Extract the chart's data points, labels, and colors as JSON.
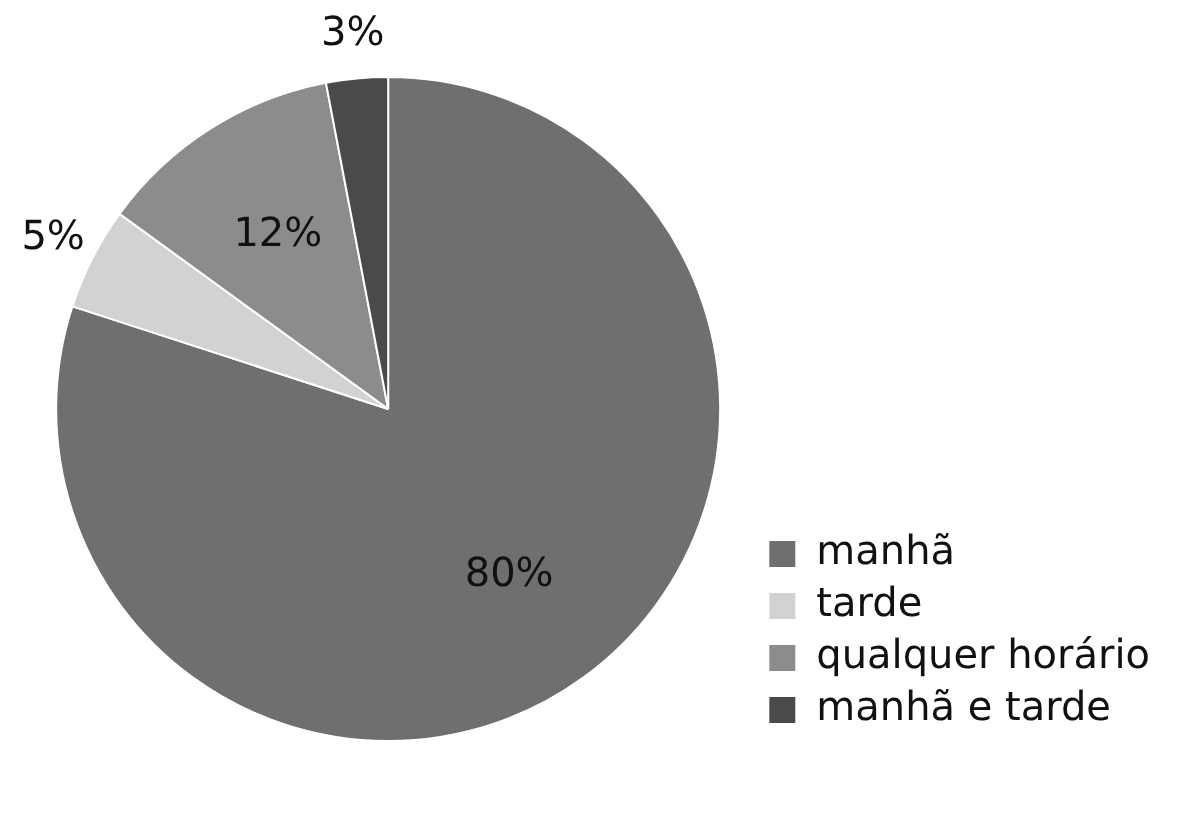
{
  "chart_data": {
    "type": "pie",
    "categories": [
      "manhã",
      "tarde",
      "qualquer horário",
      "manhã e tarde"
    ],
    "values": [
      80,
      5,
      12,
      3
    ],
    "colors": [
      "#6f6f6f",
      "#d2d2d2",
      "#8c8c8c",
      "#4a4a4a"
    ],
    "value_labels": [
      "80%",
      "5%",
      "12%",
      "3%"
    ],
    "legend": "bottom right"
  }
}
